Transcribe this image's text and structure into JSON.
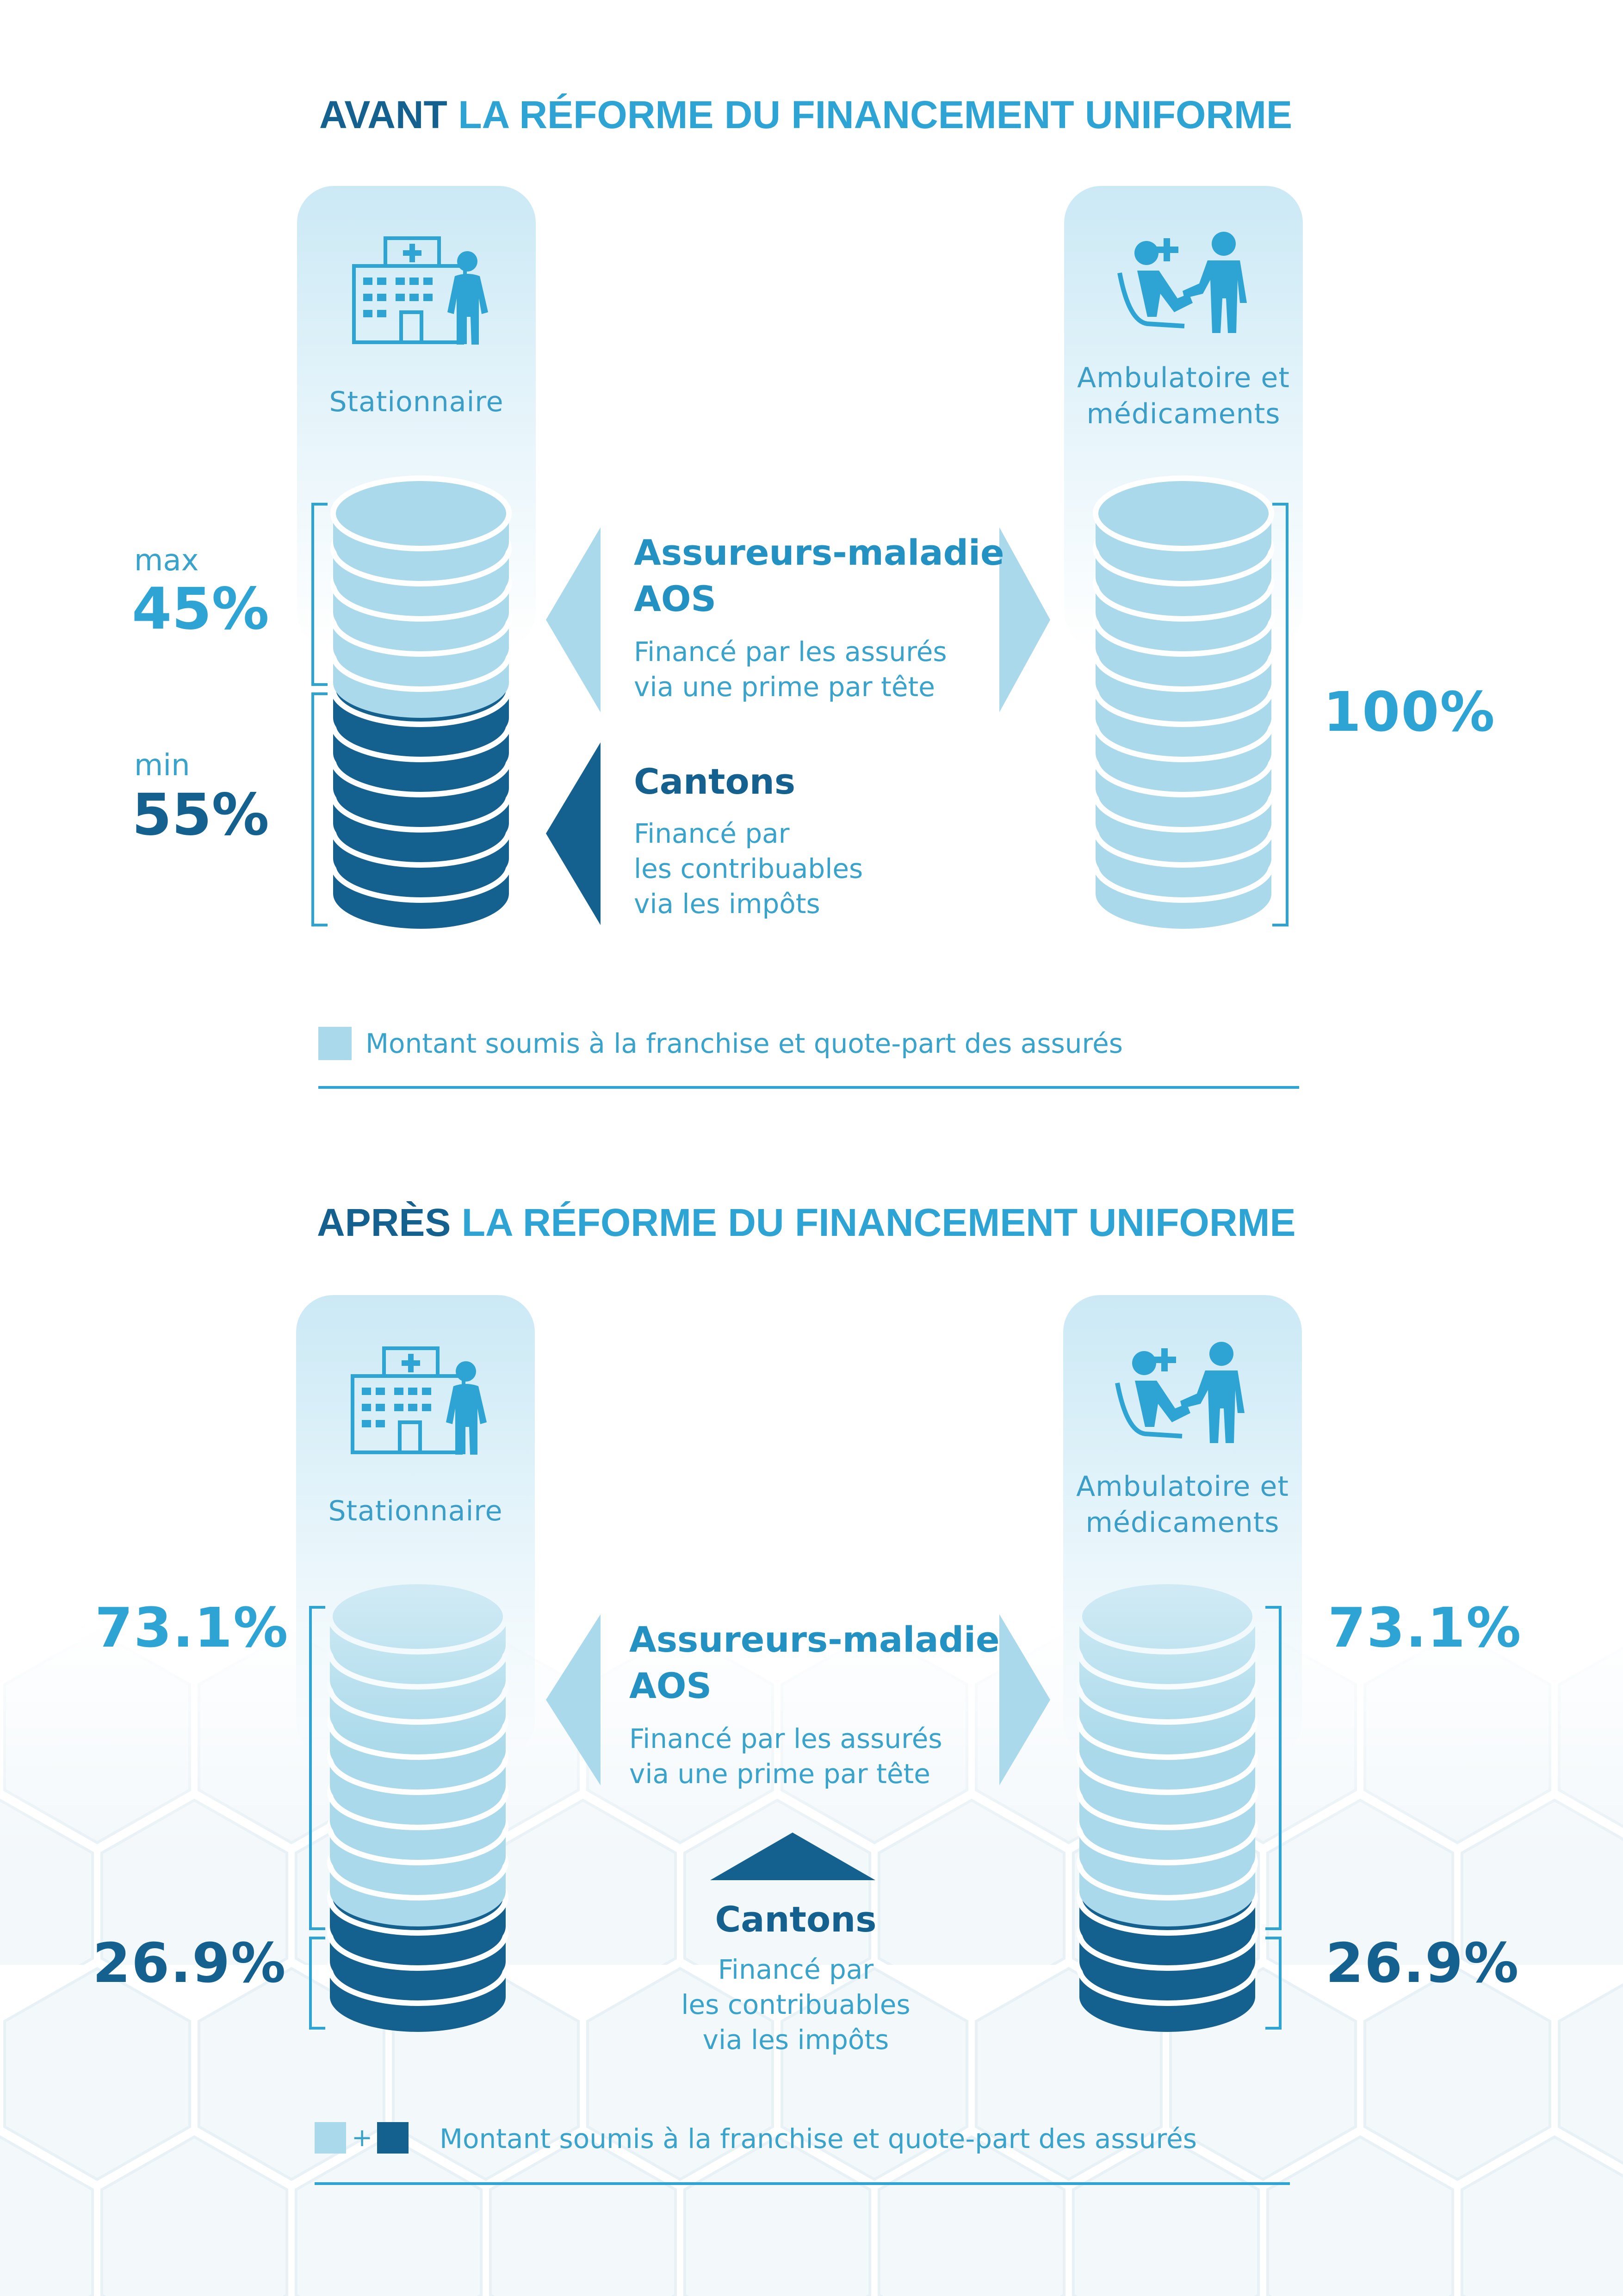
{
  "before": {
    "title_strong": "AVANT",
    "title_rest": "LA RÉFORME DU FINANCEMENT UNIFORME",
    "left_column": {
      "label": "Stationnaire",
      "icon": "hospital-patient-icon"
    },
    "right_column": {
      "label_line1": "Ambulatoire et",
      "label_line2": "médicaments",
      "icon": "doctor-patient-icon"
    },
    "insurers_share": {
      "qualifier": "max",
      "value": "45%"
    },
    "cantons_share": {
      "qualifier": "min",
      "value": "55%"
    },
    "ambulatory_share": "100%",
    "insurers": {
      "name_line1": "Assureurs-maladie",
      "name_line2": "AOS",
      "desc_line1": "Financé par les assurés",
      "desc_line2": "via une prime par tête"
    },
    "cantons": {
      "name": "Cantons",
      "desc_line1": "Financé par",
      "desc_line2": "les contribuables",
      "desc_line3": "via les impôts"
    },
    "legend": "Montant soumis à la franchise et quote-part des assurés"
  },
  "after": {
    "title_strong": "APRÈS",
    "title_rest": "LA RÉFORME DU FINANCEMENT UNIFORME",
    "left_column": {
      "label": "Stationnaire",
      "icon": "hospital-patient-icon"
    },
    "right_column": {
      "label_line1": "Ambulatoire et",
      "label_line2": "médicaments",
      "icon": "doctor-patient-icon"
    },
    "left_insurers_share": "73.1%",
    "left_cantons_share": "26.9%",
    "right_insurers_share": "73.1%",
    "right_cantons_share": "26.9%",
    "insurers": {
      "name_line1": "Assureurs-maladie",
      "name_line2": "AOS",
      "desc_line1": "Financé par les assurés",
      "desc_line2": "via une prime par tête"
    },
    "cantons": {
      "name": "Cantons",
      "desc_line1": "Financé par",
      "desc_line2": "les contribuables",
      "desc_line3": "via les impôts"
    },
    "legend_plus": "+",
    "legend": "Montant soumis à la franchise et quote-part des assurés"
  },
  "colors": {
    "light_blue": "#a9d9ea",
    "dark_blue": "#14608e",
    "accent": "#2da4d4"
  }
}
